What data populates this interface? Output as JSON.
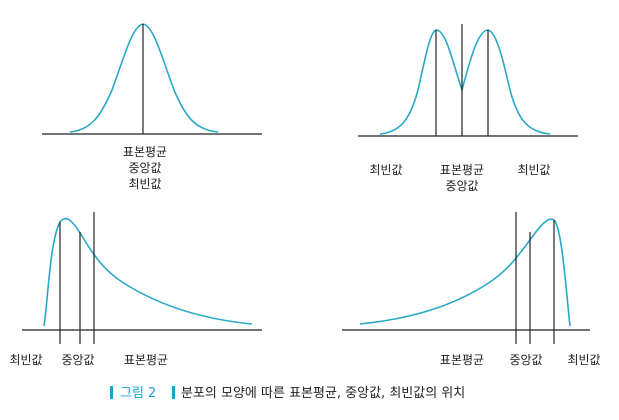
{
  "panels": [
    {
      "id": "symmetric",
      "labels": [
        "표본평균",
        "중앙값",
        "최빈값"
      ]
    },
    {
      "id": "bimodal",
      "labels": {
        "left": "최빈값",
        "center": [
          "표본평균",
          "중앙값"
        ],
        "right": "최빈값"
      }
    },
    {
      "id": "right-skewed",
      "labels": [
        "최빈값",
        "중앙값",
        "표본평균"
      ]
    },
    {
      "id": "left-skewed",
      "labels": [
        "표본평균",
        "중앙값",
        "최빈값"
      ]
    }
  ],
  "caption": {
    "figure_label": "그림 2",
    "text": "분포의 모양에 따른 표본평균, 중앙값, 최빈값의 위치"
  },
  "colors": {
    "curve": "#2aa8c8",
    "accent": "#1aa3d1",
    "ink": "#222222"
  }
}
